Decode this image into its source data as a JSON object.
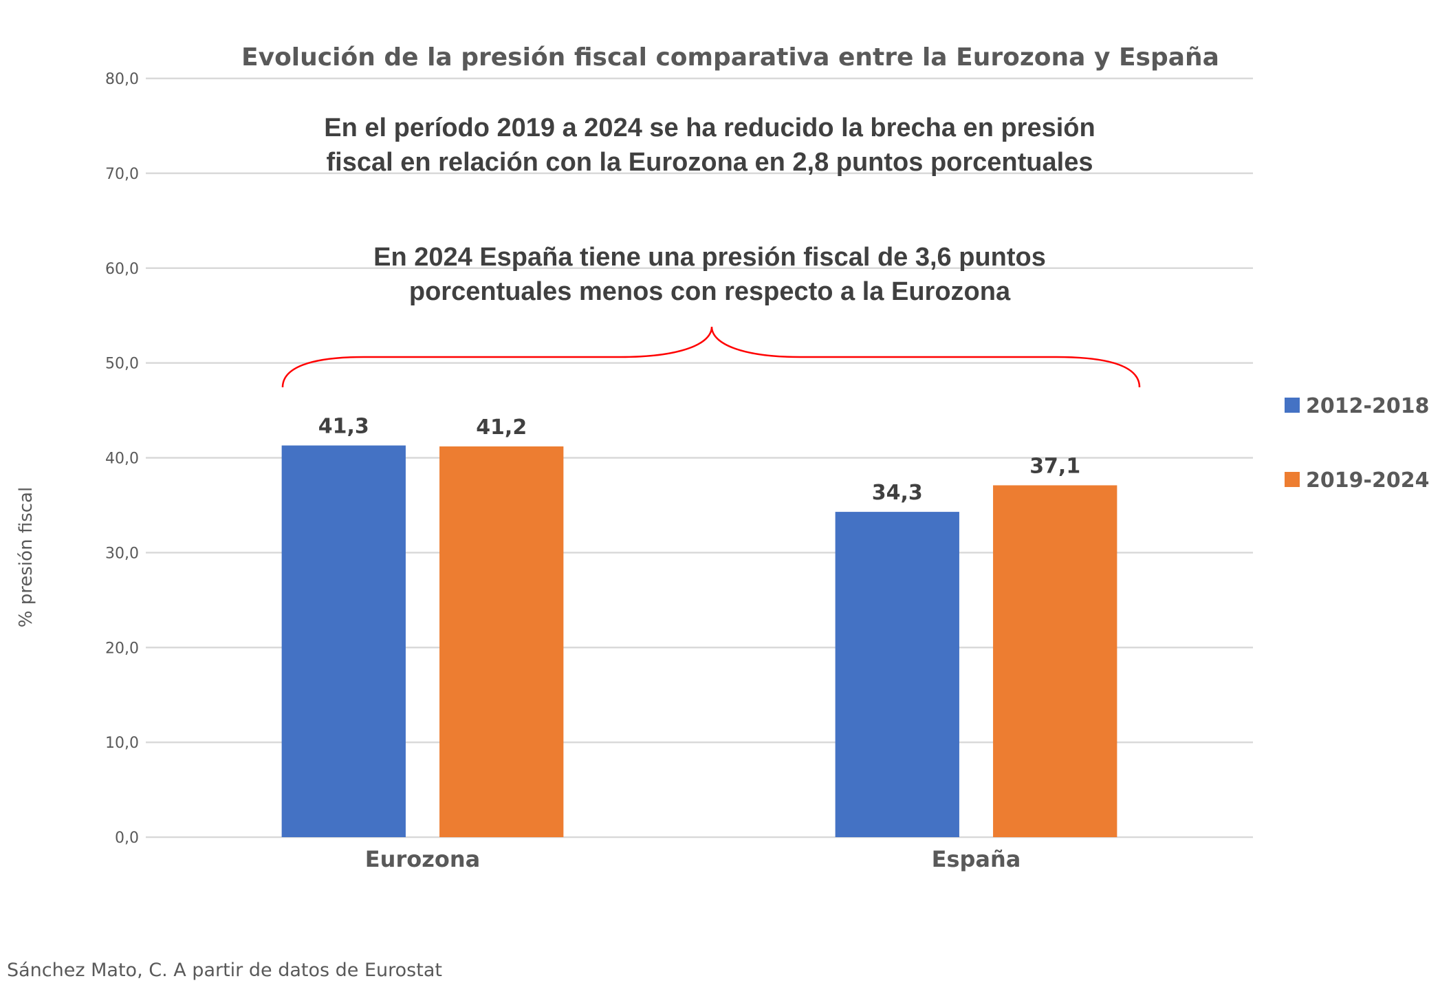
{
  "chart_data": {
    "type": "bar",
    "title": "Evolución de la presión fiscal comparativa entre la Eurozona y España",
    "categories": [
      "Eurozona",
      "España"
    ],
    "series": [
      {
        "name": "2012-2018",
        "color": "#4472C4",
        "values": [
          41.3,
          34.3
        ],
        "labels": [
          "41,3",
          "34,3"
        ]
      },
      {
        "name": "2019-2024",
        "color": "#ED7D31",
        "values": [
          41.2,
          37.1
        ],
        "labels": [
          "41,2",
          "37,1"
        ]
      }
    ],
    "xlabel": "",
    "ylabel": "% presión fiscal",
    "ylim": [
      0,
      80
    ],
    "yticks": [
      0,
      10,
      20,
      30,
      40,
      50,
      60,
      70,
      80
    ],
    "ytick_labels": [
      "0,0",
      "10,0",
      "20,0",
      "30,0",
      "40,0",
      "50,0",
      "60,0",
      "70,0",
      "80,0"
    ],
    "grid": true,
    "legend_position": "right",
    "annotations": [
      {
        "id": "gap-reduction",
        "lines": [
          "En el período 2019 a 2024 se ha reducido la brecha en presión",
          "fiscal en relación con la Eurozona en 2,8 puntos porcentuales"
        ]
      },
      {
        "id": "gap-2024",
        "lines": [
          "En 2024 España tiene una presión fiscal de 3,6 puntos",
          "porcentuales menos con respecto a la Eurozona"
        ]
      }
    ],
    "brace_color": "#FF0000"
  },
  "source": "Sánchez Mato, C.  A partir de datos de Eurostat"
}
